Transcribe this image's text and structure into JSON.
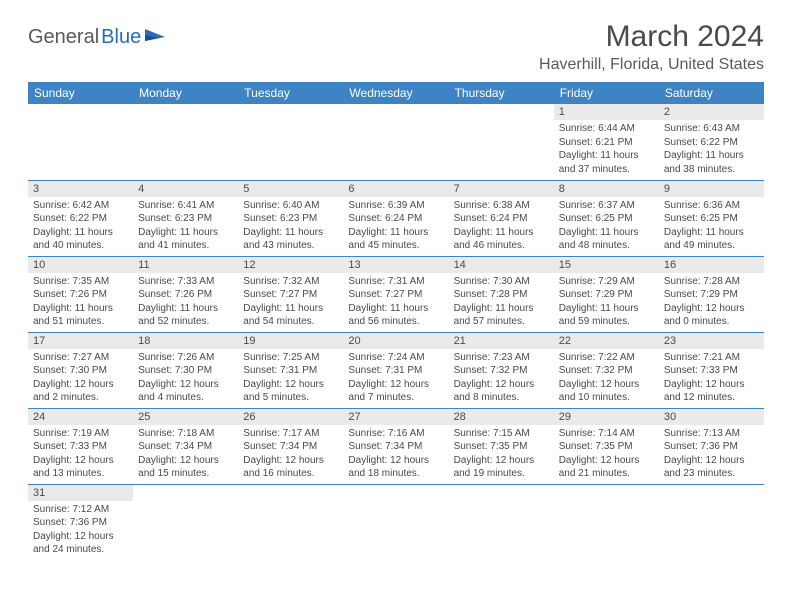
{
  "logo": {
    "text1": "General",
    "text2": "Blue"
  },
  "title": "March 2024",
  "location": "Haverhill, Florida, United States",
  "colors": {
    "header_bg": "#3e83c4",
    "header_fg": "#ffffff",
    "daynum_bg": "#eaeaea",
    "text": "#4a4a4a",
    "logo_blue": "#2a6db8"
  },
  "day_headers": [
    "Sunday",
    "Monday",
    "Tuesday",
    "Wednesday",
    "Thursday",
    "Friday",
    "Saturday"
  ],
  "weeks": [
    [
      null,
      null,
      null,
      null,
      null,
      {
        "n": "1",
        "sr": "Sunrise: 6:44 AM",
        "ss": "Sunset: 6:21 PM",
        "dl": "Daylight: 11 hours and 37 minutes."
      },
      {
        "n": "2",
        "sr": "Sunrise: 6:43 AM",
        "ss": "Sunset: 6:22 PM",
        "dl": "Daylight: 11 hours and 38 minutes."
      }
    ],
    [
      {
        "n": "3",
        "sr": "Sunrise: 6:42 AM",
        "ss": "Sunset: 6:22 PM",
        "dl": "Daylight: 11 hours and 40 minutes."
      },
      {
        "n": "4",
        "sr": "Sunrise: 6:41 AM",
        "ss": "Sunset: 6:23 PM",
        "dl": "Daylight: 11 hours and 41 minutes."
      },
      {
        "n": "5",
        "sr": "Sunrise: 6:40 AM",
        "ss": "Sunset: 6:23 PM",
        "dl": "Daylight: 11 hours and 43 minutes."
      },
      {
        "n": "6",
        "sr": "Sunrise: 6:39 AM",
        "ss": "Sunset: 6:24 PM",
        "dl": "Daylight: 11 hours and 45 minutes."
      },
      {
        "n": "7",
        "sr": "Sunrise: 6:38 AM",
        "ss": "Sunset: 6:24 PM",
        "dl": "Daylight: 11 hours and 46 minutes."
      },
      {
        "n": "8",
        "sr": "Sunrise: 6:37 AM",
        "ss": "Sunset: 6:25 PM",
        "dl": "Daylight: 11 hours and 48 minutes."
      },
      {
        "n": "9",
        "sr": "Sunrise: 6:36 AM",
        "ss": "Sunset: 6:25 PM",
        "dl": "Daylight: 11 hours and 49 minutes."
      }
    ],
    [
      {
        "n": "10",
        "sr": "Sunrise: 7:35 AM",
        "ss": "Sunset: 7:26 PM",
        "dl": "Daylight: 11 hours and 51 minutes."
      },
      {
        "n": "11",
        "sr": "Sunrise: 7:33 AM",
        "ss": "Sunset: 7:26 PM",
        "dl": "Daylight: 11 hours and 52 minutes."
      },
      {
        "n": "12",
        "sr": "Sunrise: 7:32 AM",
        "ss": "Sunset: 7:27 PM",
        "dl": "Daylight: 11 hours and 54 minutes."
      },
      {
        "n": "13",
        "sr": "Sunrise: 7:31 AM",
        "ss": "Sunset: 7:27 PM",
        "dl": "Daylight: 11 hours and 56 minutes."
      },
      {
        "n": "14",
        "sr": "Sunrise: 7:30 AM",
        "ss": "Sunset: 7:28 PM",
        "dl": "Daylight: 11 hours and 57 minutes."
      },
      {
        "n": "15",
        "sr": "Sunrise: 7:29 AM",
        "ss": "Sunset: 7:29 PM",
        "dl": "Daylight: 11 hours and 59 minutes."
      },
      {
        "n": "16",
        "sr": "Sunrise: 7:28 AM",
        "ss": "Sunset: 7:29 PM",
        "dl": "Daylight: 12 hours and 0 minutes."
      }
    ],
    [
      {
        "n": "17",
        "sr": "Sunrise: 7:27 AM",
        "ss": "Sunset: 7:30 PM",
        "dl": "Daylight: 12 hours and 2 minutes."
      },
      {
        "n": "18",
        "sr": "Sunrise: 7:26 AM",
        "ss": "Sunset: 7:30 PM",
        "dl": "Daylight: 12 hours and 4 minutes."
      },
      {
        "n": "19",
        "sr": "Sunrise: 7:25 AM",
        "ss": "Sunset: 7:31 PM",
        "dl": "Daylight: 12 hours and 5 minutes."
      },
      {
        "n": "20",
        "sr": "Sunrise: 7:24 AM",
        "ss": "Sunset: 7:31 PM",
        "dl": "Daylight: 12 hours and 7 minutes."
      },
      {
        "n": "21",
        "sr": "Sunrise: 7:23 AM",
        "ss": "Sunset: 7:32 PM",
        "dl": "Daylight: 12 hours and 8 minutes."
      },
      {
        "n": "22",
        "sr": "Sunrise: 7:22 AM",
        "ss": "Sunset: 7:32 PM",
        "dl": "Daylight: 12 hours and 10 minutes."
      },
      {
        "n": "23",
        "sr": "Sunrise: 7:21 AM",
        "ss": "Sunset: 7:33 PM",
        "dl": "Daylight: 12 hours and 12 minutes."
      }
    ],
    [
      {
        "n": "24",
        "sr": "Sunrise: 7:19 AM",
        "ss": "Sunset: 7:33 PM",
        "dl": "Daylight: 12 hours and 13 minutes."
      },
      {
        "n": "25",
        "sr": "Sunrise: 7:18 AM",
        "ss": "Sunset: 7:34 PM",
        "dl": "Daylight: 12 hours and 15 minutes."
      },
      {
        "n": "26",
        "sr": "Sunrise: 7:17 AM",
        "ss": "Sunset: 7:34 PM",
        "dl": "Daylight: 12 hours and 16 minutes."
      },
      {
        "n": "27",
        "sr": "Sunrise: 7:16 AM",
        "ss": "Sunset: 7:34 PM",
        "dl": "Daylight: 12 hours and 18 minutes."
      },
      {
        "n": "28",
        "sr": "Sunrise: 7:15 AM",
        "ss": "Sunset: 7:35 PM",
        "dl": "Daylight: 12 hours and 19 minutes."
      },
      {
        "n": "29",
        "sr": "Sunrise: 7:14 AM",
        "ss": "Sunset: 7:35 PM",
        "dl": "Daylight: 12 hours and 21 minutes."
      },
      {
        "n": "30",
        "sr": "Sunrise: 7:13 AM",
        "ss": "Sunset: 7:36 PM",
        "dl": "Daylight: 12 hours and 23 minutes."
      }
    ],
    [
      {
        "n": "31",
        "sr": "Sunrise: 7:12 AM",
        "ss": "Sunset: 7:36 PM",
        "dl": "Daylight: 12 hours and 24 minutes."
      },
      null,
      null,
      null,
      null,
      null,
      null
    ]
  ]
}
